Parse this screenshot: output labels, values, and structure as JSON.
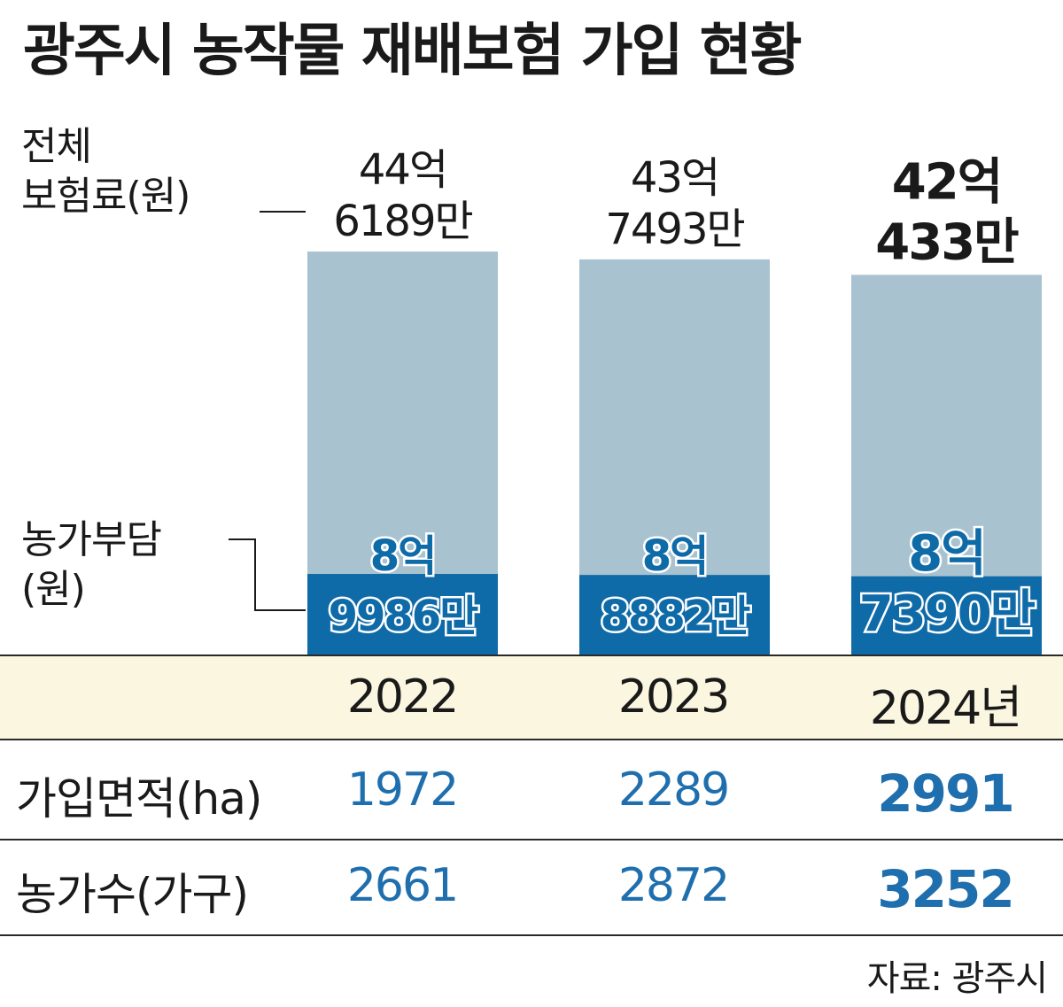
{
  "title": "광주시 농작물 재배보험 가입 현황",
  "labels": {
    "total_line1": "전체",
    "total_line2": "보험료(원)",
    "farmer_line1": "농가부담",
    "farmer_line2": "(원)"
  },
  "chart_data": {
    "type": "bar",
    "categories": [
      "2022",
      "2023",
      "2024년"
    ],
    "series": [
      {
        "name": "전체 보험료(원)",
        "values": [
          4461890000,
          4374930000,
          4204330000
        ]
      },
      {
        "name": "농가부담(원)",
        "values": [
          899860000,
          888820000,
          873900000
        ]
      }
    ],
    "bar_labels": {
      "total": [
        [
          "44억",
          "6189만"
        ],
        [
          "43억",
          "7493만"
        ],
        [
          "42억",
          "433만"
        ]
      ],
      "farmer": [
        [
          "8억",
          "9986만"
        ],
        [
          "8억",
          "8882만"
        ],
        [
          "8억",
          "7390만"
        ]
      ]
    },
    "colors": {
      "total": "#a8c3cf",
      "farmer": "#0f6aa8"
    }
  },
  "table": {
    "years": [
      "2022",
      "2023",
      "2024년"
    ],
    "rows": [
      {
        "label": "가입면적(ha)",
        "values": [
          "1972",
          "2289",
          "2991"
        ]
      },
      {
        "label": "농가수(가구)",
        "values": [
          "2661",
          "2872",
          "3252"
        ]
      }
    ],
    "value_color": "#1f6fae"
  },
  "source": "자료: 광주시"
}
